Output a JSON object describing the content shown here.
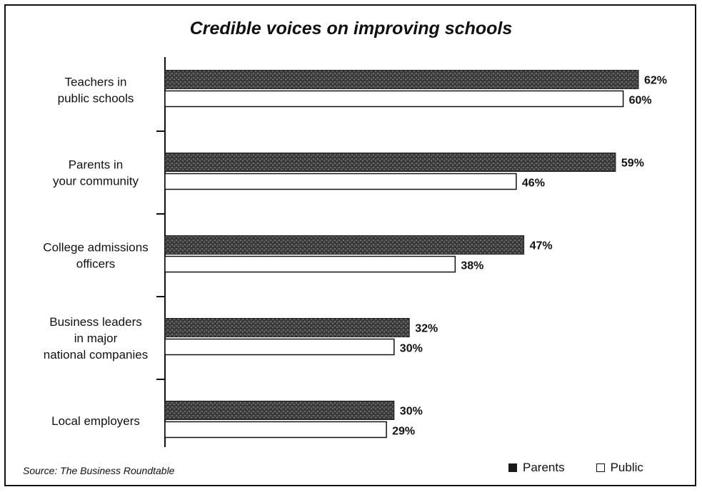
{
  "chart_data": {
    "type": "bar",
    "orientation": "horizontal",
    "title": "Credible voices on improving schools",
    "categories": [
      [
        "Teachers in",
        "public schools"
      ],
      [
        "Parents in",
        "your community"
      ],
      [
        "College admissions",
        "officers"
      ],
      [
        "Business leaders",
        "in major",
        "national companies"
      ],
      [
        "Local employers"
      ]
    ],
    "series": [
      {
        "name": "Parents",
        "values": [
          62,
          59,
          47,
          32,
          30
        ],
        "labels": [
          "62%",
          "59%",
          "47%",
          "32%",
          "30%"
        ],
        "color": "#4a4a4a",
        "fill": "dark-textured"
      },
      {
        "name": "Public",
        "values": [
          60,
          46,
          38,
          30,
          29
        ],
        "labels": [
          "60%",
          "46%",
          "38%",
          "30%",
          "29%"
        ],
        "color": "#ffffff",
        "fill": "white-outlined"
      }
    ],
    "xlim": [
      0,
      62
    ],
    "grid": false,
    "legend_position": "bottom-right",
    "source": "Source: The Business Roundtable"
  }
}
